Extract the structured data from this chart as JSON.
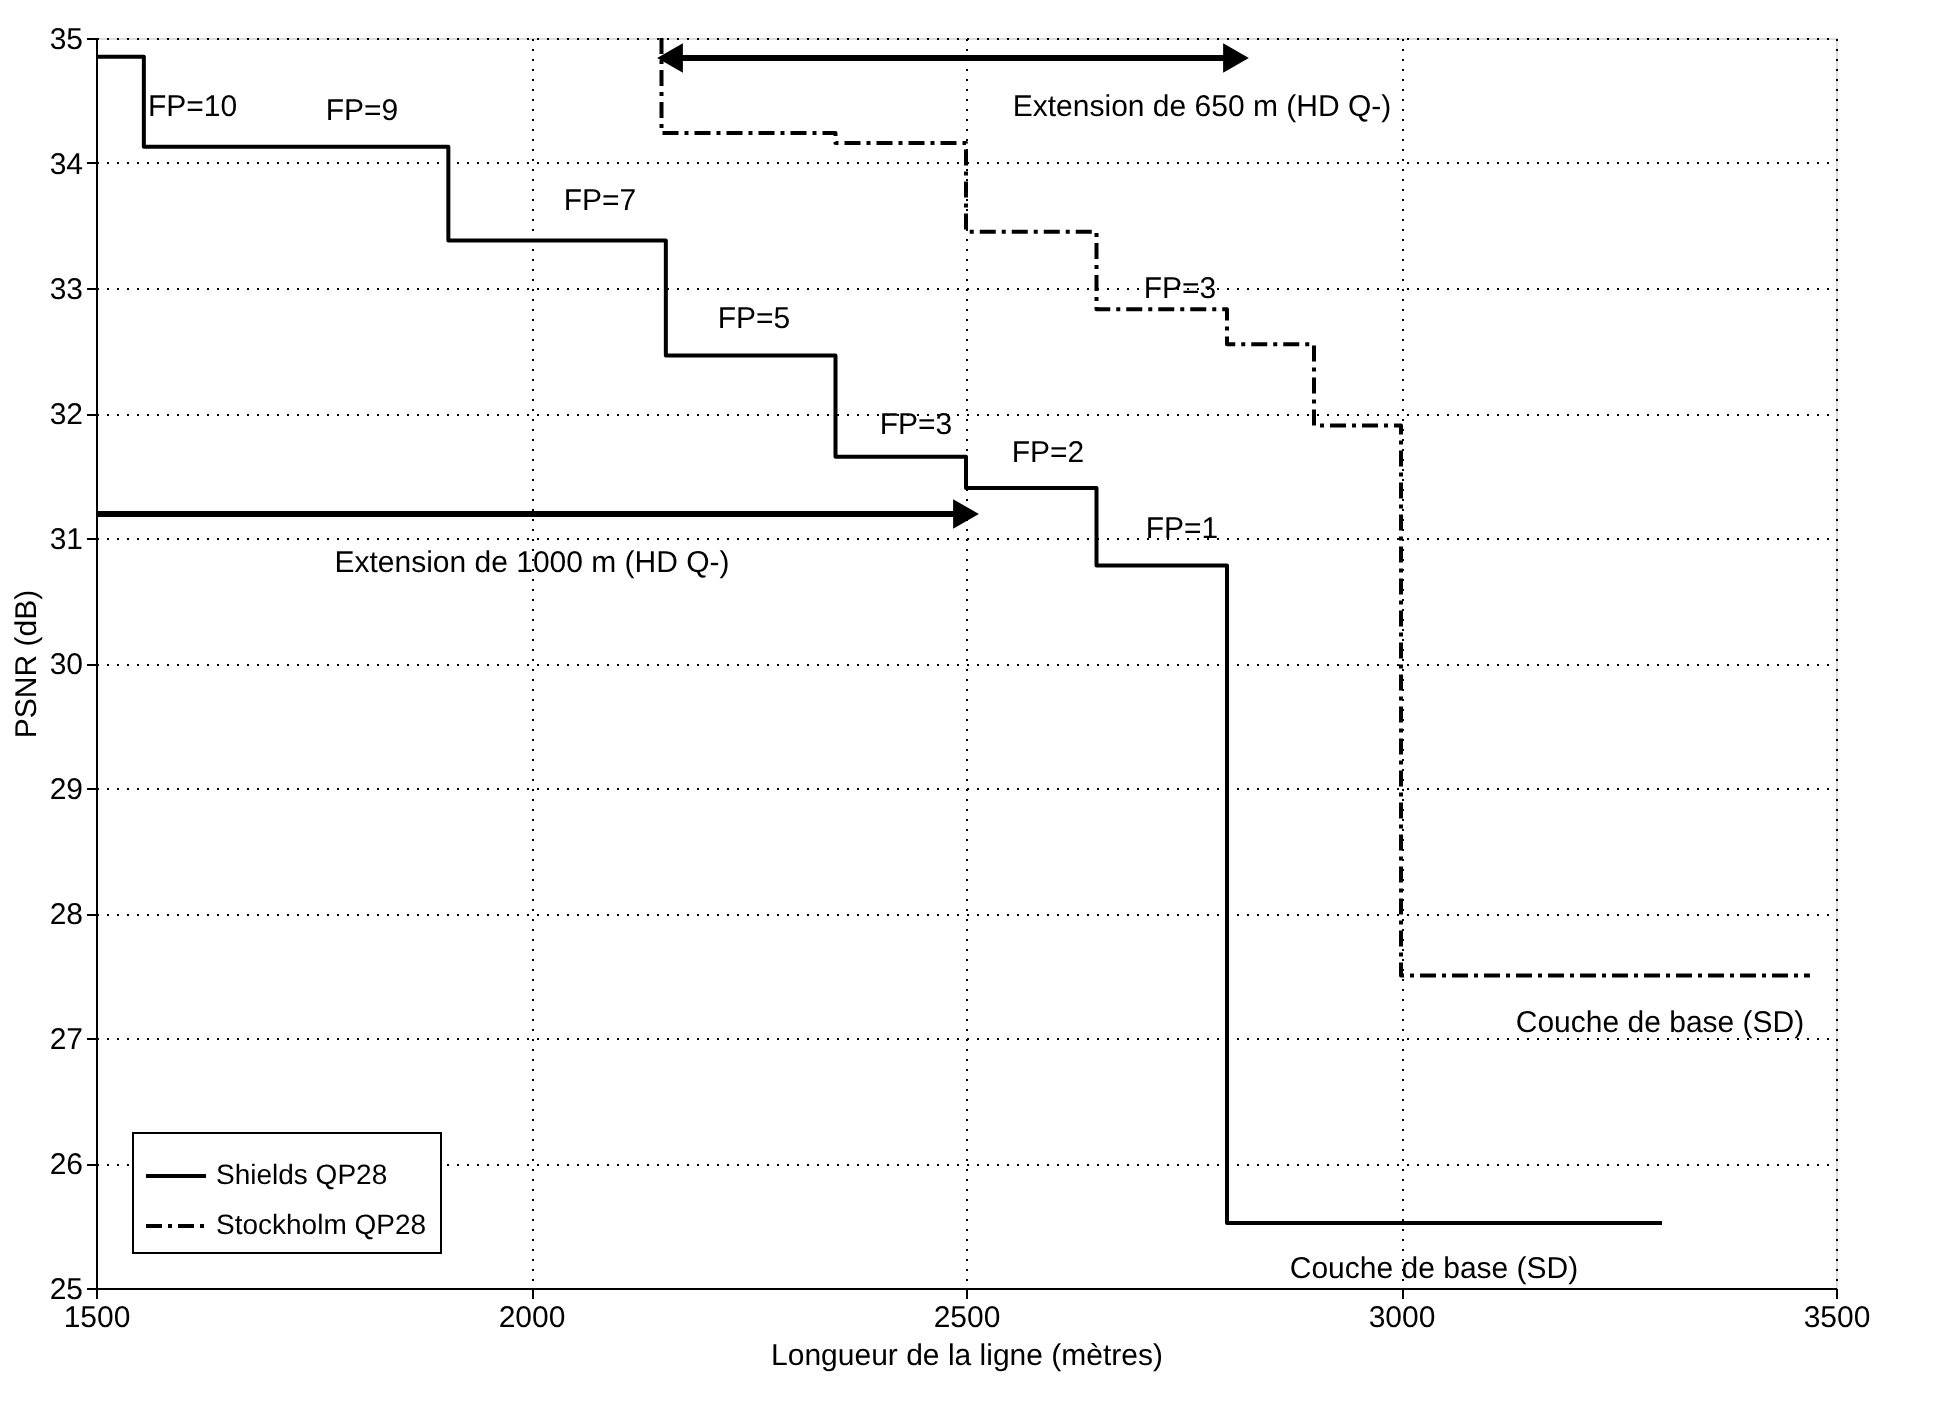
{
  "chart_data": {
    "type": "step",
    "xlabel": "Longueur de la ligne (mètres)",
    "ylabel": "PSNR (dB)",
    "xlim": [
      1500,
      3500
    ],
    "xticks": [
      1500,
      2000,
      2500,
      3000,
      3500
    ],
    "ylim": [
      25,
      35
    ],
    "yticks": [
      25,
      26,
      27,
      28,
      29,
      30,
      31,
      32,
      33,
      34,
      35
    ],
    "grid": true,
    "legend": "bottom left",
    "series": [
      {
        "name": "Shields QP28",
        "color": "#000000",
        "line_style": "solid",
        "x": [
          1500,
          1555,
          1905,
          2155,
          2350,
          2500,
          2650,
          2800,
          3300
        ],
        "values": [
          34.85,
          34.13,
          33.38,
          32.46,
          31.65,
          31.4,
          30.78,
          25.52,
          25.52
        ]
      },
      {
        "name": "Stockholm QP28",
        "color": "#000000",
        "line_style": "dashed",
        "x": [
          2150,
          2150,
          2350,
          2500,
          2650,
          2800,
          2900,
          3000,
          3470
        ],
        "values": [
          35,
          34.24,
          34.16,
          33.45,
          32.83,
          32.55,
          31.9,
          27.5,
          27.5
        ]
      }
    ],
    "annotations": [
      "FP=10",
      "FP=9",
      "FP=7",
      "FP=5",
      "FP=3",
      "FP=2",
      "FP=1",
      "FP=3",
      "Couche de base (SD)",
      "Couche de base (SD)",
      "Extension de 1000 m (HD Q-)",
      "Extension de 650 m (HD Q-)"
    ]
  }
}
